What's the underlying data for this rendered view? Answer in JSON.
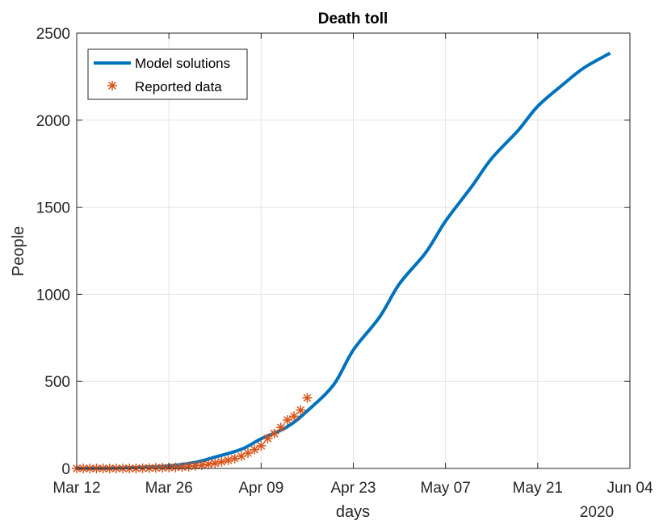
{
  "chart_data": {
    "type": "line",
    "title": "Death toll",
    "xlabel": "days",
    "ylabel": "People",
    "x_year_label": "2020",
    "x_tick_labels": [
      "Mar 12",
      "Mar 26",
      "Apr 09",
      "Apr 23",
      "May 07",
      "May 21",
      "Jun 04"
    ],
    "x_tick_dates": [
      "2020-03-12",
      "2020-03-26",
      "2020-04-09",
      "2020-04-23",
      "2020-05-07",
      "2020-05-21",
      "2020-06-04"
    ],
    "xlim": [
      "2020-03-12",
      "2020-06-04"
    ],
    "y_tick_labels": [
      "0",
      "500",
      "1000",
      "1500",
      "2000",
      "2500"
    ],
    "ylim": [
      0,
      2500
    ],
    "grid": true,
    "legend_position": "top-left",
    "series": [
      {
        "name": "Model solutions",
        "style": "line",
        "color": "#0072BD",
        "x": [
          "2020-03-12",
          "2020-03-19",
          "2020-03-26",
          "2020-03-30",
          "2020-04-02",
          "2020-04-06",
          "2020-04-09",
          "2020-04-13",
          "2020-04-16",
          "2020-04-20",
          "2020-04-23",
          "2020-04-27",
          "2020-04-30",
          "2020-05-04",
          "2020-05-07",
          "2020-05-11",
          "2020-05-14",
          "2020-05-18",
          "2020-05-21",
          "2020-05-25",
          "2020-05-28",
          "2020-06-01"
        ],
        "y": [
          0,
          3,
          15,
          35,
          65,
          110,
          170,
          240,
          330,
          480,
          680,
          870,
          1060,
          1240,
          1420,
          1620,
          1780,
          1940,
          2080,
          2210,
          2300,
          2385
        ]
      },
      {
        "name": "Reported data",
        "style": "markers",
        "marker": "asterisk",
        "color": "#D95319",
        "x": [
          "2020-03-12",
          "2020-03-13",
          "2020-03-14",
          "2020-03-15",
          "2020-03-16",
          "2020-03-17",
          "2020-03-18",
          "2020-03-19",
          "2020-03-20",
          "2020-03-21",
          "2020-03-22",
          "2020-03-23",
          "2020-03-24",
          "2020-03-25",
          "2020-03-26",
          "2020-03-27",
          "2020-03-28",
          "2020-03-29",
          "2020-03-30",
          "2020-03-31",
          "2020-04-01",
          "2020-04-02",
          "2020-04-03",
          "2020-04-04",
          "2020-04-05",
          "2020-04-06",
          "2020-04-07",
          "2020-04-08",
          "2020-04-09",
          "2020-04-10",
          "2020-04-11",
          "2020-04-12",
          "2020-04-13",
          "2020-04-14",
          "2020-04-15",
          "2020-04-16"
        ],
        "y": [
          0,
          0,
          0,
          0,
          0,
          0,
          0,
          0,
          0,
          0,
          1,
          2,
          3,
          4,
          5,
          6,
          8,
          11,
          15,
          19,
          24,
          30,
          38,
          47,
          57,
          70,
          88,
          108,
          130,
          172,
          200,
          235,
          278,
          300,
          335,
          405
        ]
      }
    ]
  }
}
